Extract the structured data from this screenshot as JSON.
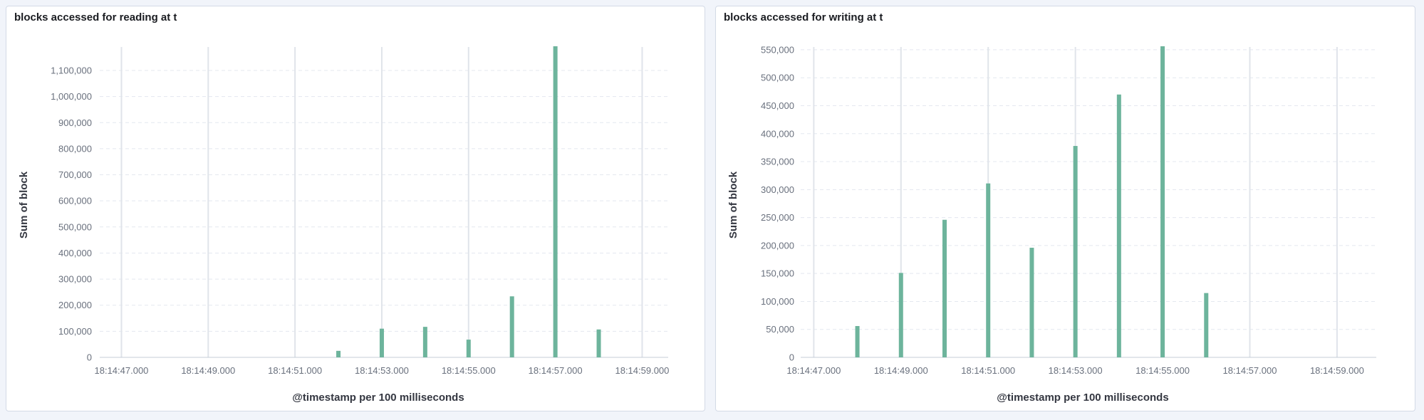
{
  "colors": {
    "bar": "#6db49c",
    "grid_h": "#e4e8ef",
    "grid_v": "#e0e4ea",
    "axis": "#c5ccd7",
    "panel_border": "#d3dae6",
    "background": "#f1f4fa"
  },
  "panels": [
    {
      "title": "blocks accessed for reading at t",
      "ylabel": "Sum of block",
      "xlabel": "@timestamp per 100 milliseconds",
      "y_ticks": [
        "0",
        "100,000",
        "200,000",
        "300,000",
        "400,000",
        "500,000",
        "600,000",
        "700,000",
        "800,000",
        "900,000",
        "1,000,000",
        "1,100,000"
      ],
      "x_ticks": [
        "18:14:47.000",
        "18:14:49.000",
        "18:14:51.000",
        "18:14:53.000",
        "18:14:55.000",
        "18:14:57.000",
        "18:14:59.000"
      ]
    },
    {
      "title": "blocks accessed for writing at t",
      "ylabel": "Sum of block",
      "xlabel": "@timestamp per 100 milliseconds",
      "y_ticks": [
        "0",
        "50,000",
        "100,000",
        "150,000",
        "200,000",
        "250,000",
        "300,000",
        "350,000",
        "400,000",
        "450,000",
        "500,000",
        "550,000"
      ],
      "x_ticks": [
        "18:14:47.000",
        "18:14:49.000",
        "18:14:51.000",
        "18:14:53.000",
        "18:14:55.000",
        "18:14:57.000",
        "18:14:59.000"
      ]
    }
  ],
  "chart_data": [
    {
      "type": "bar",
      "title": "blocks accessed for reading at t",
      "xlabel": "@timestamp per 100 milliseconds",
      "ylabel": "Sum of block",
      "x_range": [
        "18:14:46.500",
        "18:14:59.600"
      ],
      "ylim": [
        0,
        1190000
      ],
      "grid": true,
      "legend": "none",
      "series": [
        {
          "x": [
            "18:14:52.000",
            "18:14:53.000",
            "18:14:54.000",
            "18:14:55.000",
            "18:14:56.000",
            "18:14:57.000",
            "18:14:58.000"
          ],
          "values": [
            25000,
            110000,
            117000,
            68000,
            234000,
            1195000,
            107000
          ]
        }
      ]
    },
    {
      "type": "bar",
      "title": "blocks accessed for writing at t",
      "xlabel": "@timestamp per 100 milliseconds",
      "ylabel": "Sum of block",
      "x_range": [
        "18:14:46.700",
        "18:14:59.900"
      ],
      "ylim": [
        0,
        555000
      ],
      "grid": true,
      "legend": "none",
      "series": [
        {
          "x": [
            "18:14:48.000",
            "18:14:49.000",
            "18:14:50.000",
            "18:14:51.000",
            "18:14:52.000",
            "18:14:53.000",
            "18:14:54.000",
            "18:14:55.000",
            "18:14:56.000"
          ],
          "values": [
            56000,
            151000,
            246000,
            311000,
            196000,
            378000,
            470000,
            560000,
            115000
          ]
        }
      ]
    }
  ]
}
